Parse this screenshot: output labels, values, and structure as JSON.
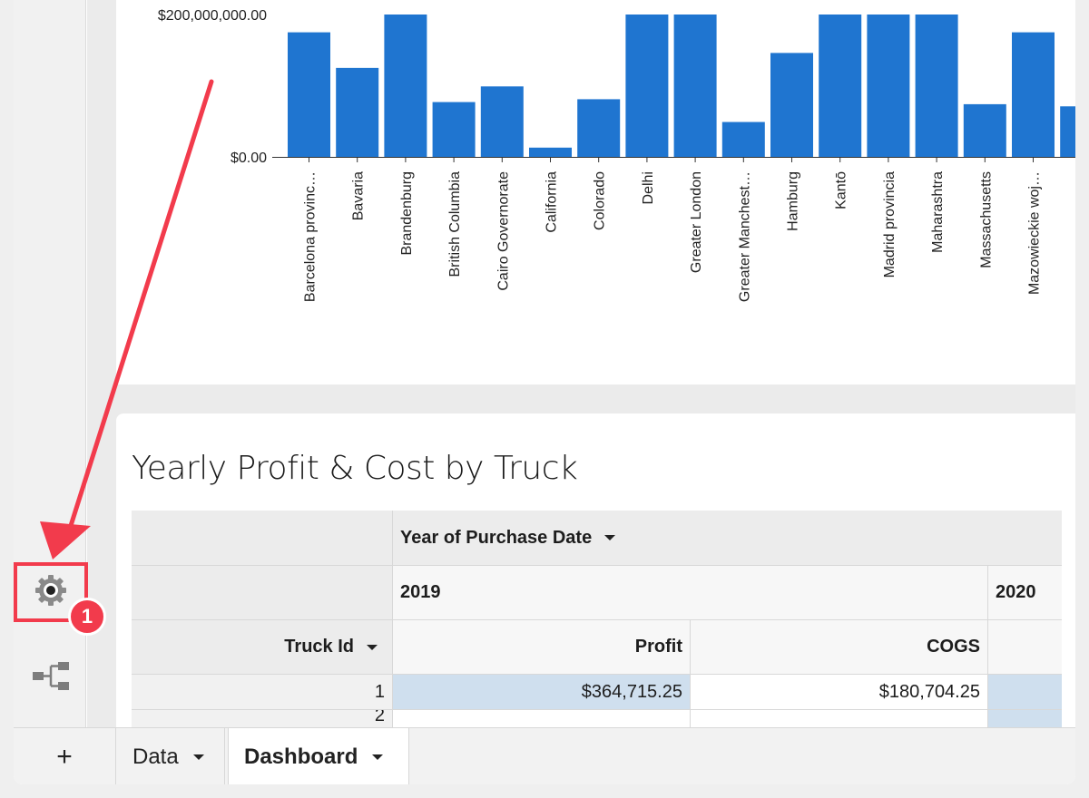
{
  "chart_data": {
    "type": "bar",
    "categories": [
      "Barcelona provinc…",
      "Bavaria",
      "Brandenburg",
      "British Columbia",
      "Cairo Governorate",
      "California",
      "Colorado",
      "Delhi",
      "Greater London",
      "Greater Manchest…",
      "Hamburg",
      "Kantō",
      "Madrid provincia",
      "Maharashtra",
      "Massachusetts",
      "Mazowieckie woj…",
      ""
    ],
    "values": [
      175000000,
      125000000,
      200000000,
      77000000,
      99000000,
      13000000,
      81000000,
      200000000,
      200000000,
      49000000,
      146000000,
      200000000,
      200000000,
      200000000,
      74000000,
      175000000,
      71000000
    ],
    "y_tick_labels": [
      "$200,000,000.00",
      "$0.00"
    ],
    "ylim": [
      0,
      200000000
    ],
    "bar_color": "#1f75d0"
  },
  "table": {
    "title": "Yearly Profit & Cost by Truck",
    "column_group_header": "Year of Purchase Date",
    "years": [
      "2019",
      "2020"
    ],
    "row_header": "Truck Id",
    "measures": [
      "Profit",
      "COGS"
    ],
    "rows": [
      {
        "id": "1",
        "profit": "$364,715.25",
        "cogs": "$180,704.25"
      },
      {
        "id": "2",
        "profit": "",
        "cogs": ""
      }
    ]
  },
  "rail": {
    "gear_icon": "gear-icon",
    "tree_icon": "tree-icon",
    "badge": "1"
  },
  "bottom_tabs": {
    "add": "+",
    "data": "Data",
    "dashboard": "Dashboard"
  },
  "colors": {
    "accent_red": "#f23b4c",
    "selection": "#cfdfee"
  }
}
